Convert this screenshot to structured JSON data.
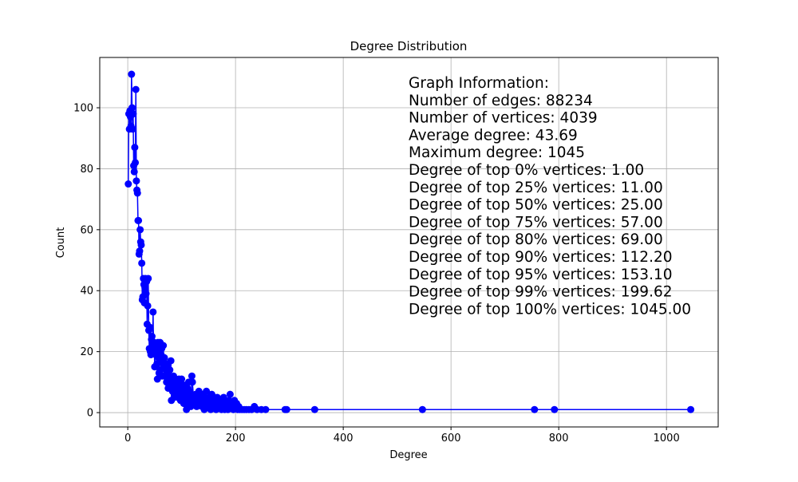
{
  "chart_data": {
    "type": "line",
    "title": "Degree Distribution",
    "x_label": "Degree",
    "y_label": "Count",
    "color": "#0000ff",
    "grid": true,
    "xlim": [
      -52,
      1096
    ],
    "ylim": [
      -4.7,
      116.5
    ],
    "xticks": [
      0,
      200,
      400,
      600,
      800,
      1000
    ],
    "yticks": [
      0,
      20,
      40,
      60,
      80,
      100
    ],
    "annotations": [
      "Graph Information:",
      "Number of edges: 88234",
      "Number of vertices: 4039",
      "Average degree: 43.69",
      "Maximum degree: 1045",
      "Degree of top 0% vertices: 1.00",
      "Degree of top 25% vertices: 11.00",
      "Degree of top 50% vertices: 25.00",
      "Degree of top 75% vertices: 57.00",
      "Degree of top 80% vertices: 69.00",
      "Degree of top 90% vertices: 112.20",
      "Degree of top 95% vertices: 153.10",
      "Degree of top 99% vertices: 199.62",
      "Degree of top 100% vertices: 1045.00"
    ],
    "x": [
      1,
      2,
      3,
      4,
      5,
      6,
      7,
      8,
      9,
      10,
      11,
      12,
      13,
      14,
      15,
      16,
      17,
      18,
      19,
      20,
      21,
      22,
      23,
      24,
      25,
      26,
      27,
      28,
      29,
      30,
      31,
      32,
      33,
      34,
      35,
      36,
      37,
      38,
      39,
      40,
      41,
      42,
      43,
      44,
      45,
      46,
      47,
      48,
      49,
      50,
      51,
      52,
      53,
      54,
      55,
      56,
      57,
      58,
      59,
      60,
      61,
      62,
      63,
      64,
      65,
      66,
      67,
      68,
      69,
      70,
      71,
      72,
      73,
      74,
      75,
      76,
      77,
      78,
      79,
      80,
      81,
      82,
      83,
      84,
      85,
      86,
      87,
      88,
      89,
      90,
      91,
      92,
      93,
      94,
      95,
      96,
      97,
      98,
      99,
      100,
      101,
      102,
      103,
      104,
      105,
      106,
      107,
      108,
      109,
      110,
      111,
      112,
      113,
      114,
      115,
      116,
      117,
      118,
      119,
      120,
      122,
      124,
      126,
      128,
      130,
      132,
      134,
      136,
      138,
      140,
      142,
      144,
      146,
      148,
      150,
      152,
      154,
      156,
      158,
      160,
      162,
      164,
      166,
      168,
      170,
      172,
      174,
      176,
      178,
      180,
      182,
      184,
      186,
      188,
      190,
      192,
      194,
      196,
      198,
      200,
      202,
      204,
      206,
      208,
      212,
      216,
      220,
      225,
      230,
      235,
      240,
      248,
      256,
      292,
      295,
      347,
      547,
      755,
      792,
      1045
    ],
    "values": [
      75,
      98,
      93,
      99,
      97,
      94,
      111,
      100,
      93,
      98,
      81,
      79,
      87,
      82,
      106,
      76,
      73,
      72,
      63,
      63,
      52,
      53,
      60,
      56,
      55,
      49,
      37,
      38,
      44,
      42,
      36,
      41,
      44,
      39,
      43,
      29,
      35,
      44,
      27,
      21,
      28,
      20,
      19,
      24,
      25,
      22,
      33,
      20,
      23,
      15,
      21,
      19,
      22,
      16,
      11,
      23,
      18,
      13,
      20,
      23,
      14,
      19,
      21,
      12,
      17,
      22,
      15,
      18,
      12,
      16,
      14,
      10,
      13,
      16,
      8,
      12,
      9,
      14,
      11,
      17,
      4,
      10,
      7,
      9,
      12,
      5,
      8,
      11,
      6,
      9,
      7,
      10,
      5,
      8,
      11,
      6,
      9,
      4,
      7,
      11,
      5,
      8,
      6,
      3,
      9,
      5,
      7,
      4,
      1,
      6,
      8,
      3,
      10,
      5,
      7,
      4,
      2,
      6,
      12,
      10,
      5,
      3,
      6,
      2,
      4,
      7,
      3,
      5,
      2,
      6,
      1,
      4,
      7,
      2,
      3,
      5,
      1,
      6,
      2,
      4,
      3,
      1,
      5,
      2,
      3,
      4,
      1,
      2,
      5,
      1,
      3,
      2,
      1,
      4,
      6,
      2,
      3,
      1,
      4,
      2,
      3,
      1,
      2,
      1,
      1,
      1,
      1,
      1,
      1,
      2,
      1,
      1,
      1,
      1,
      1,
      1,
      1,
      1,
      1,
      1
    ]
  }
}
